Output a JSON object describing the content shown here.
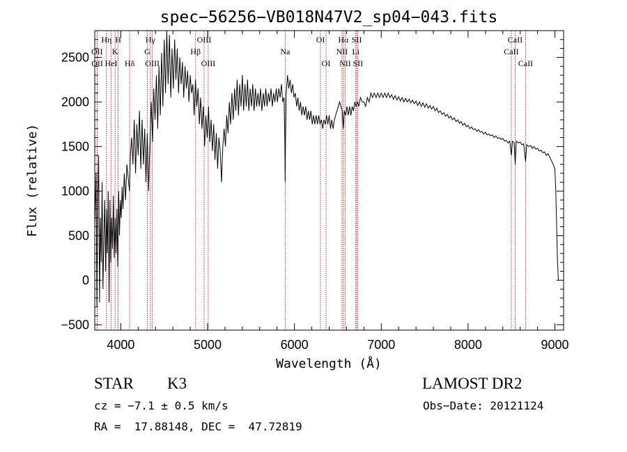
{
  "chart_data": {
    "type": "line",
    "title": "spec−56256−VB018N47V2_sp04−043.fits",
    "xlabel": "Wavelength (Å)",
    "ylabel": "Flux (relative)",
    "xlim": [
      3700,
      9100
    ],
    "ylim": [
      -560,
      2800
    ],
    "xticks": [
      4000,
      5000,
      6000,
      7000,
      8000,
      9000
    ],
    "yticks": [
      -500,
      0,
      500,
      1000,
      1500,
      2000,
      2500
    ],
    "grid": false,
    "spectrum_points": [
      [
        3700,
        600
      ],
      [
        3715,
        1200
      ],
      [
        3725,
        -300
      ],
      [
        3735,
        900
      ],
      [
        3745,
        1400
      ],
      [
        3755,
        -250
      ],
      [
        3765,
        700
      ],
      [
        3775,
        200
      ],
      [
        3785,
        1100
      ],
      [
        3795,
        -100
      ],
      [
        3805,
        500
      ],
      [
        3815,
        900
      ],
      [
        3825,
        100
      ],
      [
        3835,
        800
      ],
      [
        3845,
        300
      ],
      [
        3855,
        1000
      ],
      [
        3865,
        -250
      ],
      [
        3875,
        900
      ],
      [
        3885,
        200
      ],
      [
        3895,
        700
      ],
      [
        3905,
        350
      ],
      [
        3915,
        950
      ],
      [
        3925,
        250
      ],
      [
        3935,
        700
      ],
      [
        3945,
        300
      ],
      [
        3955,
        800
      ],
      [
        3965,
        150
      ],
      [
        3975,
        1000
      ],
      [
        3985,
        500
      ],
      [
        3995,
        900
      ],
      [
        4005,
        700
      ],
      [
        4015,
        1050
      ],
      [
        4025,
        800
      ],
      [
        4040,
        1200
      ],
      [
        4055,
        900
      ],
      [
        4070,
        1300
      ],
      [
        4085,
        1150
      ],
      [
        4100,
        1000
      ],
      [
        4110,
        1400
      ],
      [
        4125,
        1600
      ],
      [
        4140,
        1300
      ],
      [
        4155,
        1800
      ],
      [
        4170,
        1200
      ],
      [
        4185,
        1750
      ],
      [
        4200,
        1400
      ],
      [
        4215,
        1900
      ],
      [
        4230,
        1250
      ],
      [
        4245,
        1800
      ],
      [
        4260,
        1300
      ],
      [
        4275,
        1700
      ],
      [
        4290,
        1100
      ],
      [
        4305,
        1650
      ],
      [
        4320,
        1000
      ],
      [
        4335,
        1500
      ],
      [
        4350,
        2000
      ],
      [
        4365,
        1550
      ],
      [
        4380,
        2150
      ],
      [
        4395,
        1800
      ],
      [
        4410,
        2300
      ],
      [
        4425,
        1700
      ],
      [
        4440,
        2400
      ],
      [
        4455,
        1850
      ],
      [
        4470,
        2550
      ],
      [
        4485,
        1950
      ],
      [
        4500,
        2700
      ],
      [
        4515,
        2100
      ],
      [
        4530,
        2800
      ],
      [
        4545,
        2200
      ],
      [
        4560,
        2750
      ],
      [
        4575,
        2050
      ],
      [
        4590,
        2600
      ],
      [
        4605,
        2150
      ],
      [
        4620,
        2700
      ],
      [
        4635,
        2250
      ],
      [
        4650,
        2600
      ],
      [
        4665,
        2100
      ],
      [
        4680,
        2500
      ],
      [
        4695,
        2200
      ],
      [
        4710,
        2450
      ],
      [
        4725,
        2050
      ],
      [
        4740,
        2400
      ],
      [
        4755,
        2150
      ],
      [
        4770,
        2350
      ],
      [
        4785,
        2000
      ],
      [
        4800,
        2300
      ],
      [
        4815,
        2100
      ],
      [
        4830,
        2200
      ],
      [
        4845,
        1850
      ],
      [
        4860,
        2250
      ],
      [
        4875,
        1950
      ],
      [
        4890,
        2150
      ],
      [
        4905,
        1750
      ],
      [
        4920,
        2050
      ],
      [
        4935,
        1700
      ],
      [
        4950,
        1950
      ],
      [
        4965,
        1500
      ],
      [
        4980,
        1850
      ],
      [
        4995,
        1600
      ],
      [
        5010,
        1950
      ],
      [
        5025,
        1550
      ],
      [
        5040,
        1800
      ],
      [
        5055,
        1450
      ],
      [
        5070,
        1750
      ],
      [
        5085,
        1350
      ],
      [
        5100,
        1650
      ],
      [
        5115,
        1250
      ],
      [
        5130,
        1600
      ],
      [
        5145,
        1450
      ],
      [
        5160,
        1100
      ],
      [
        5175,
        1500
      ],
      [
        5190,
        1700
      ],
      [
        5205,
        1500
      ],
      [
        5220,
        1850
      ],
      [
        5235,
        1650
      ],
      [
        5250,
        2000
      ],
      [
        5265,
        1750
      ],
      [
        5280,
        2100
      ],
      [
        5295,
        1800
      ],
      [
        5310,
        2150
      ],
      [
        5325,
        1900
      ],
      [
        5340,
        2250
      ],
      [
        5355,
        1850
      ],
      [
        5370,
        2200
      ],
      [
        5385,
        1950
      ],
      [
        5400,
        2300
      ],
      [
        5415,
        1900
      ],
      [
        5430,
        2200
      ],
      [
        5445,
        1950
      ],
      [
        5460,
        2250
      ],
      [
        5475,
        1900
      ],
      [
        5490,
        2150
      ],
      [
        5505,
        1950
      ],
      [
        5520,
        2200
      ],
      [
        5535,
        1900
      ],
      [
        5550,
        2150
      ],
      [
        5565,
        1950
      ],
      [
        5580,
        2100
      ],
      [
        5595,
        1950
      ],
      [
        5610,
        2150
      ],
      [
        5625,
        1900
      ],
      [
        5640,
        2100
      ],
      [
        5655,
        1950
      ],
      [
        5670,
        2150
      ],
      [
        5685,
        1950
      ],
      [
        5700,
        2100
      ],
      [
        5715,
        2000
      ],
      [
        5730,
        2150
      ],
      [
        5745,
        1950
      ],
      [
        5760,
        2100
      ],
      [
        5775,
        2000
      ],
      [
        5790,
        2150
      ],
      [
        5805,
        2000
      ],
      [
        5820,
        2150
      ],
      [
        5835,
        2050
      ],
      [
        5850,
        2200
      ],
      [
        5865,
        2000
      ],
      [
        5880,
        2050
      ],
      [
        5890,
        1550
      ],
      [
        5893,
        1100
      ],
      [
        5897,
        1550
      ],
      [
        5905,
        2100
      ],
      [
        5920,
        2300
      ],
      [
        5935,
        2150
      ],
      [
        5950,
        2250
      ],
      [
        5965,
        2100
      ],
      [
        5980,
        2200
      ],
      [
        5995,
        2050
      ],
      [
        6010,
        2100
      ],
      [
        6025,
        1950
      ],
      [
        6040,
        2050
      ],
      [
        6055,
        1900
      ],
      [
        6070,
        2000
      ],
      [
        6085,
        1850
      ],
      [
        6100,
        1950
      ],
      [
        6115,
        1850
      ],
      [
        6130,
        1950
      ],
      [
        6145,
        1800
      ],
      [
        6160,
        1900
      ],
      [
        6175,
        1800
      ],
      [
        6190,
        1900
      ],
      [
        6205,
        1750
      ],
      [
        6220,
        1850
      ],
      [
        6235,
        1750
      ],
      [
        6250,
        1850
      ],
      [
        6265,
        1750
      ],
      [
        6280,
        1850
      ],
      [
        6295,
        1750
      ],
      [
        6310,
        1800
      ],
      [
        6325,
        1700
      ],
      [
        6340,
        1800
      ],
      [
        6355,
        1750
      ],
      [
        6370,
        1850
      ],
      [
        6385,
        1750
      ],
      [
        6400,
        1850
      ],
      [
        6415,
        1700
      ],
      [
        6430,
        1800
      ],
      [
        6445,
        1700
      ],
      [
        6460,
        1800
      ],
      [
        6475,
        1850
      ],
      [
        6490,
        1900
      ],
      [
        6505,
        1950
      ],
      [
        6520,
        2000
      ],
      [
        6535,
        1950
      ],
      [
        6550,
        1900
      ],
      [
        6563,
        1700
      ],
      [
        6575,
        1900
      ],
      [
        6590,
        1850
      ],
      [
        6605,
        1950
      ],
      [
        6620,
        1850
      ],
      [
        6635,
        1950
      ],
      [
        6650,
        1850
      ],
      [
        6665,
        1950
      ],
      [
        6680,
        1900
      ],
      [
        6695,
        2000
      ],
      [
        6710,
        1950
      ],
      [
        6725,
        2000
      ],
      [
        6740,
        1950
      ],
      [
        6760,
        2050
      ],
      [
        6780,
        2000
      ],
      [
        6800,
        2000
      ],
      [
        6820,
        1950
      ],
      [
        6840,
        2050
      ],
      [
        6860,
        2000
      ],
      [
        6880,
        2100
      ],
      [
        6900,
        2050
      ],
      [
        6920,
        2100
      ],
      [
        6940,
        2050
      ],
      [
        6960,
        2100
      ],
      [
        6980,
        2050
      ],
      [
        7000,
        2100
      ],
      [
        7020,
        2050
      ],
      [
        7040,
        2100
      ],
      [
        7060,
        2050
      ],
      [
        7080,
        2100
      ],
      [
        7100,
        2050
      ],
      [
        7120,
        2080
      ],
      [
        7140,
        2030
      ],
      [
        7160,
        2070
      ],
      [
        7180,
        2020
      ],
      [
        7200,
        2060
      ],
      [
        7220,
        2010
      ],
      [
        7240,
        2050
      ],
      [
        7260,
        2000
      ],
      [
        7280,
        2040
      ],
      [
        7300,
        2000
      ],
      [
        7320,
        2030
      ],
      [
        7340,
        1990
      ],
      [
        7360,
        2020
      ],
      [
        7380,
        1980
      ],
      [
        7400,
        2010
      ],
      [
        7420,
        1960
      ],
      [
        7440,
        2000
      ],
      [
        7460,
        1950
      ],
      [
        7480,
        1990
      ],
      [
        7500,
        1940
      ],
      [
        7520,
        1980
      ],
      [
        7540,
        1930
      ],
      [
        7560,
        1960
      ],
      [
        7580,
        1920
      ],
      [
        7600,
        1950
      ],
      [
        7620,
        1900
      ],
      [
        7640,
        1930
      ],
      [
        7660,
        1880
      ],
      [
        7680,
        1900
      ],
      [
        7700,
        1860
      ],
      [
        7720,
        1880
      ],
      [
        7740,
        1840
      ],
      [
        7760,
        1860
      ],
      [
        7780,
        1820
      ],
      [
        7800,
        1840
      ],
      [
        7820,
        1800
      ],
      [
        7840,
        1820
      ],
      [
        7860,
        1780
      ],
      [
        7880,
        1800
      ],
      [
        7900,
        1760
      ],
      [
        7920,
        1780
      ],
      [
        7940,
        1740
      ],
      [
        7960,
        1760
      ],
      [
        7980,
        1720
      ],
      [
        8000,
        1740
      ],
      [
        8020,
        1700
      ],
      [
        8040,
        1720
      ],
      [
        8060,
        1690
      ],
      [
        8080,
        1700
      ],
      [
        8100,
        1670
      ],
      [
        8120,
        1690
      ],
      [
        8140,
        1660
      ],
      [
        8160,
        1670
      ],
      [
        8180,
        1640
      ],
      [
        8200,
        1660
      ],
      [
        8220,
        1630
      ],
      [
        8240,
        1640
      ],
      [
        8260,
        1620
      ],
      [
        8280,
        1630
      ],
      [
        8300,
        1600
      ],
      [
        8320,
        1620
      ],
      [
        8340,
        1590
      ],
      [
        8360,
        1600
      ],
      [
        8380,
        1580
      ],
      [
        8400,
        1590
      ],
      [
        8420,
        1560
      ],
      [
        8440,
        1570
      ],
      [
        8460,
        1540
      ],
      [
        8480,
        1560
      ],
      [
        8498,
        1400
      ],
      [
        8510,
        1560
      ],
      [
        8530,
        1540
      ],
      [
        8542,
        1300
      ],
      [
        8555,
        1560
      ],
      [
        8580,
        1540
      ],
      [
        8600,
        1550
      ],
      [
        8620,
        1520
      ],
      [
        8640,
        1530
      ],
      [
        8662,
        1330
      ],
      [
        8675,
        1520
      ],
      [
        8700,
        1500
      ],
      [
        8720,
        1510
      ],
      [
        8740,
        1480
      ],
      [
        8760,
        1500
      ],
      [
        8780,
        1470
      ],
      [
        8800,
        1480
      ],
      [
        8820,
        1450
      ],
      [
        8840,
        1460
      ],
      [
        8860,
        1430
      ],
      [
        8880,
        1440
      ],
      [
        8900,
        1400
      ],
      [
        8920,
        1420
      ],
      [
        8940,
        1380
      ],
      [
        8960,
        1340
      ],
      [
        8980,
        1300
      ],
      [
        9000,
        1250
      ],
      [
        9010,
        1000
      ],
      [
        9020,
        600
      ],
      [
        9030,
        200
      ],
      [
        9040,
        0
      ]
    ],
    "lines": [
      {
        "name": "OII",
        "wl": 3727,
        "pos": "top",
        "row": 1
      },
      {
        "name": "OII",
        "wl": 3729,
        "pos": "top",
        "row": 2
      },
      {
        "name": "Hη",
        "wl": 3835,
        "pos": "top",
        "row": 0
      },
      {
        "name": "HeI",
        "wl": 3889,
        "pos": "top",
        "row": 2
      },
      {
        "name": "K",
        "wl": 3934,
        "pos": "top",
        "row": 1
      },
      {
        "name": "H",
        "wl": 3969,
        "pos": "top",
        "row": 0
      },
      {
        "name": "Hδ",
        "wl": 4102,
        "pos": "top",
        "row": 2
      },
      {
        "name": "Hγ",
        "wl": 4341,
        "pos": "top",
        "row": 0
      },
      {
        "name": "G",
        "wl": 4305,
        "pos": "top",
        "row": 1
      },
      {
        "name": "OIII",
        "wl": 4363,
        "pos": "top",
        "row": 2
      },
      {
        "name": "OIII",
        "wl": 4959,
        "pos": "top",
        "row": 0
      },
      {
        "name": "Hβ",
        "wl": 4861,
        "pos": "top",
        "row": 1
      },
      {
        "name": "OIII",
        "wl": 5007,
        "pos": "top",
        "row": 2
      },
      {
        "name": "Na",
        "wl": 5893,
        "pos": "top",
        "row": 1
      },
      {
        "name": "OI",
        "wl": 6300,
        "pos": "top",
        "row": 0
      },
      {
        "name": "OI",
        "wl": 6364,
        "pos": "top",
        "row": 2
      },
      {
        "name": "Hα",
        "wl": 6563,
        "pos": "top",
        "row": 0
      },
      {
        "name": "NII",
        "wl": 6548,
        "pos": "top",
        "row": 1
      },
      {
        "name": "NII",
        "wl": 6584,
        "pos": "top",
        "row": 2
      },
      {
        "name": "SII",
        "wl": 6717,
        "pos": "top",
        "row": 0
      },
      {
        "name": "Li",
        "wl": 6707,
        "pos": "top",
        "row": 1
      },
      {
        "name": "SII",
        "wl": 6731,
        "pos": "top",
        "row": 2
      },
      {
        "name": "CaII",
        "wl": 8542,
        "pos": "top",
        "row": 0
      },
      {
        "name": "CaII",
        "wl": 8498,
        "pos": "top",
        "row": 1
      },
      {
        "name": "CaII",
        "wl": 8662,
        "pos": "top",
        "row": 2
      }
    ]
  },
  "info": {
    "object_class": "STAR",
    "subclass": "K3",
    "survey": "LAMOST DR2",
    "cz": "cz = −7.1 ± 0.5 km/s",
    "obs_date": "Obs−Date: 20121124",
    "radec": "RA =  17.88148, DEC =  47.72819"
  },
  "colors": {
    "spectrum": "#000000",
    "lines": "#aa0000"
  }
}
